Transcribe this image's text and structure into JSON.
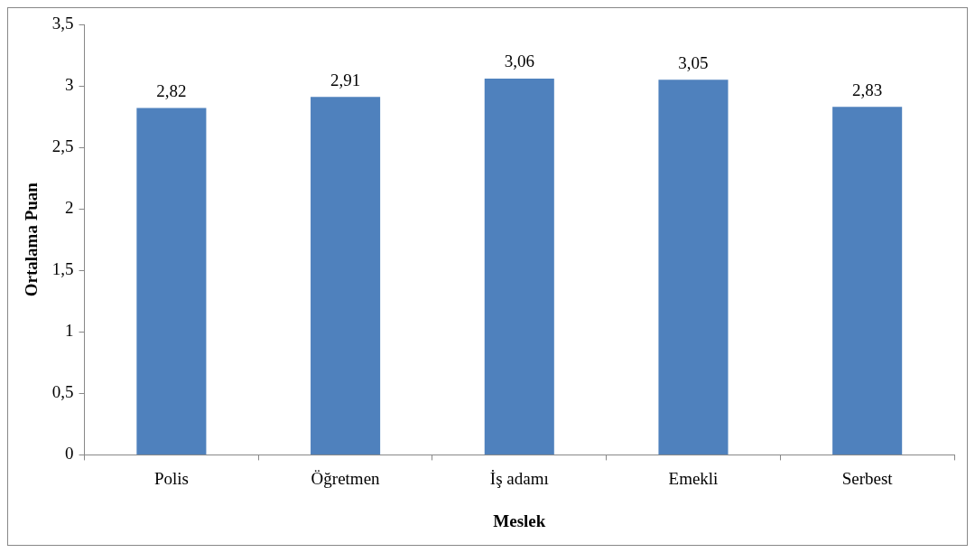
{
  "chart_data": {
    "type": "bar",
    "xlabel": "Meslek",
    "ylabel": "Ortalama Puan",
    "categories": [
      "Polis",
      "Öğretmen",
      "İş adamı",
      "Emekli",
      "Serbest"
    ],
    "values": [
      2.82,
      2.91,
      3.06,
      3.05,
      2.83
    ],
    "value_labels": [
      "2,82",
      "2,91",
      "3,06",
      "3,05",
      "2,83"
    ],
    "color": "#4f81bd",
    "ylim": [
      0,
      3.5
    ],
    "yticks": [
      0,
      {
        "value": 0.5,
        "label": "0,5"
      },
      1,
      {
        "value": 1.5,
        "label": "1,5"
      },
      2,
      {
        "value": 2.5,
        "label": "2,5"
      },
      3,
      {
        "value": 3.5,
        "label": "3,5"
      }
    ],
    "grid": false,
    "legend": false
  }
}
